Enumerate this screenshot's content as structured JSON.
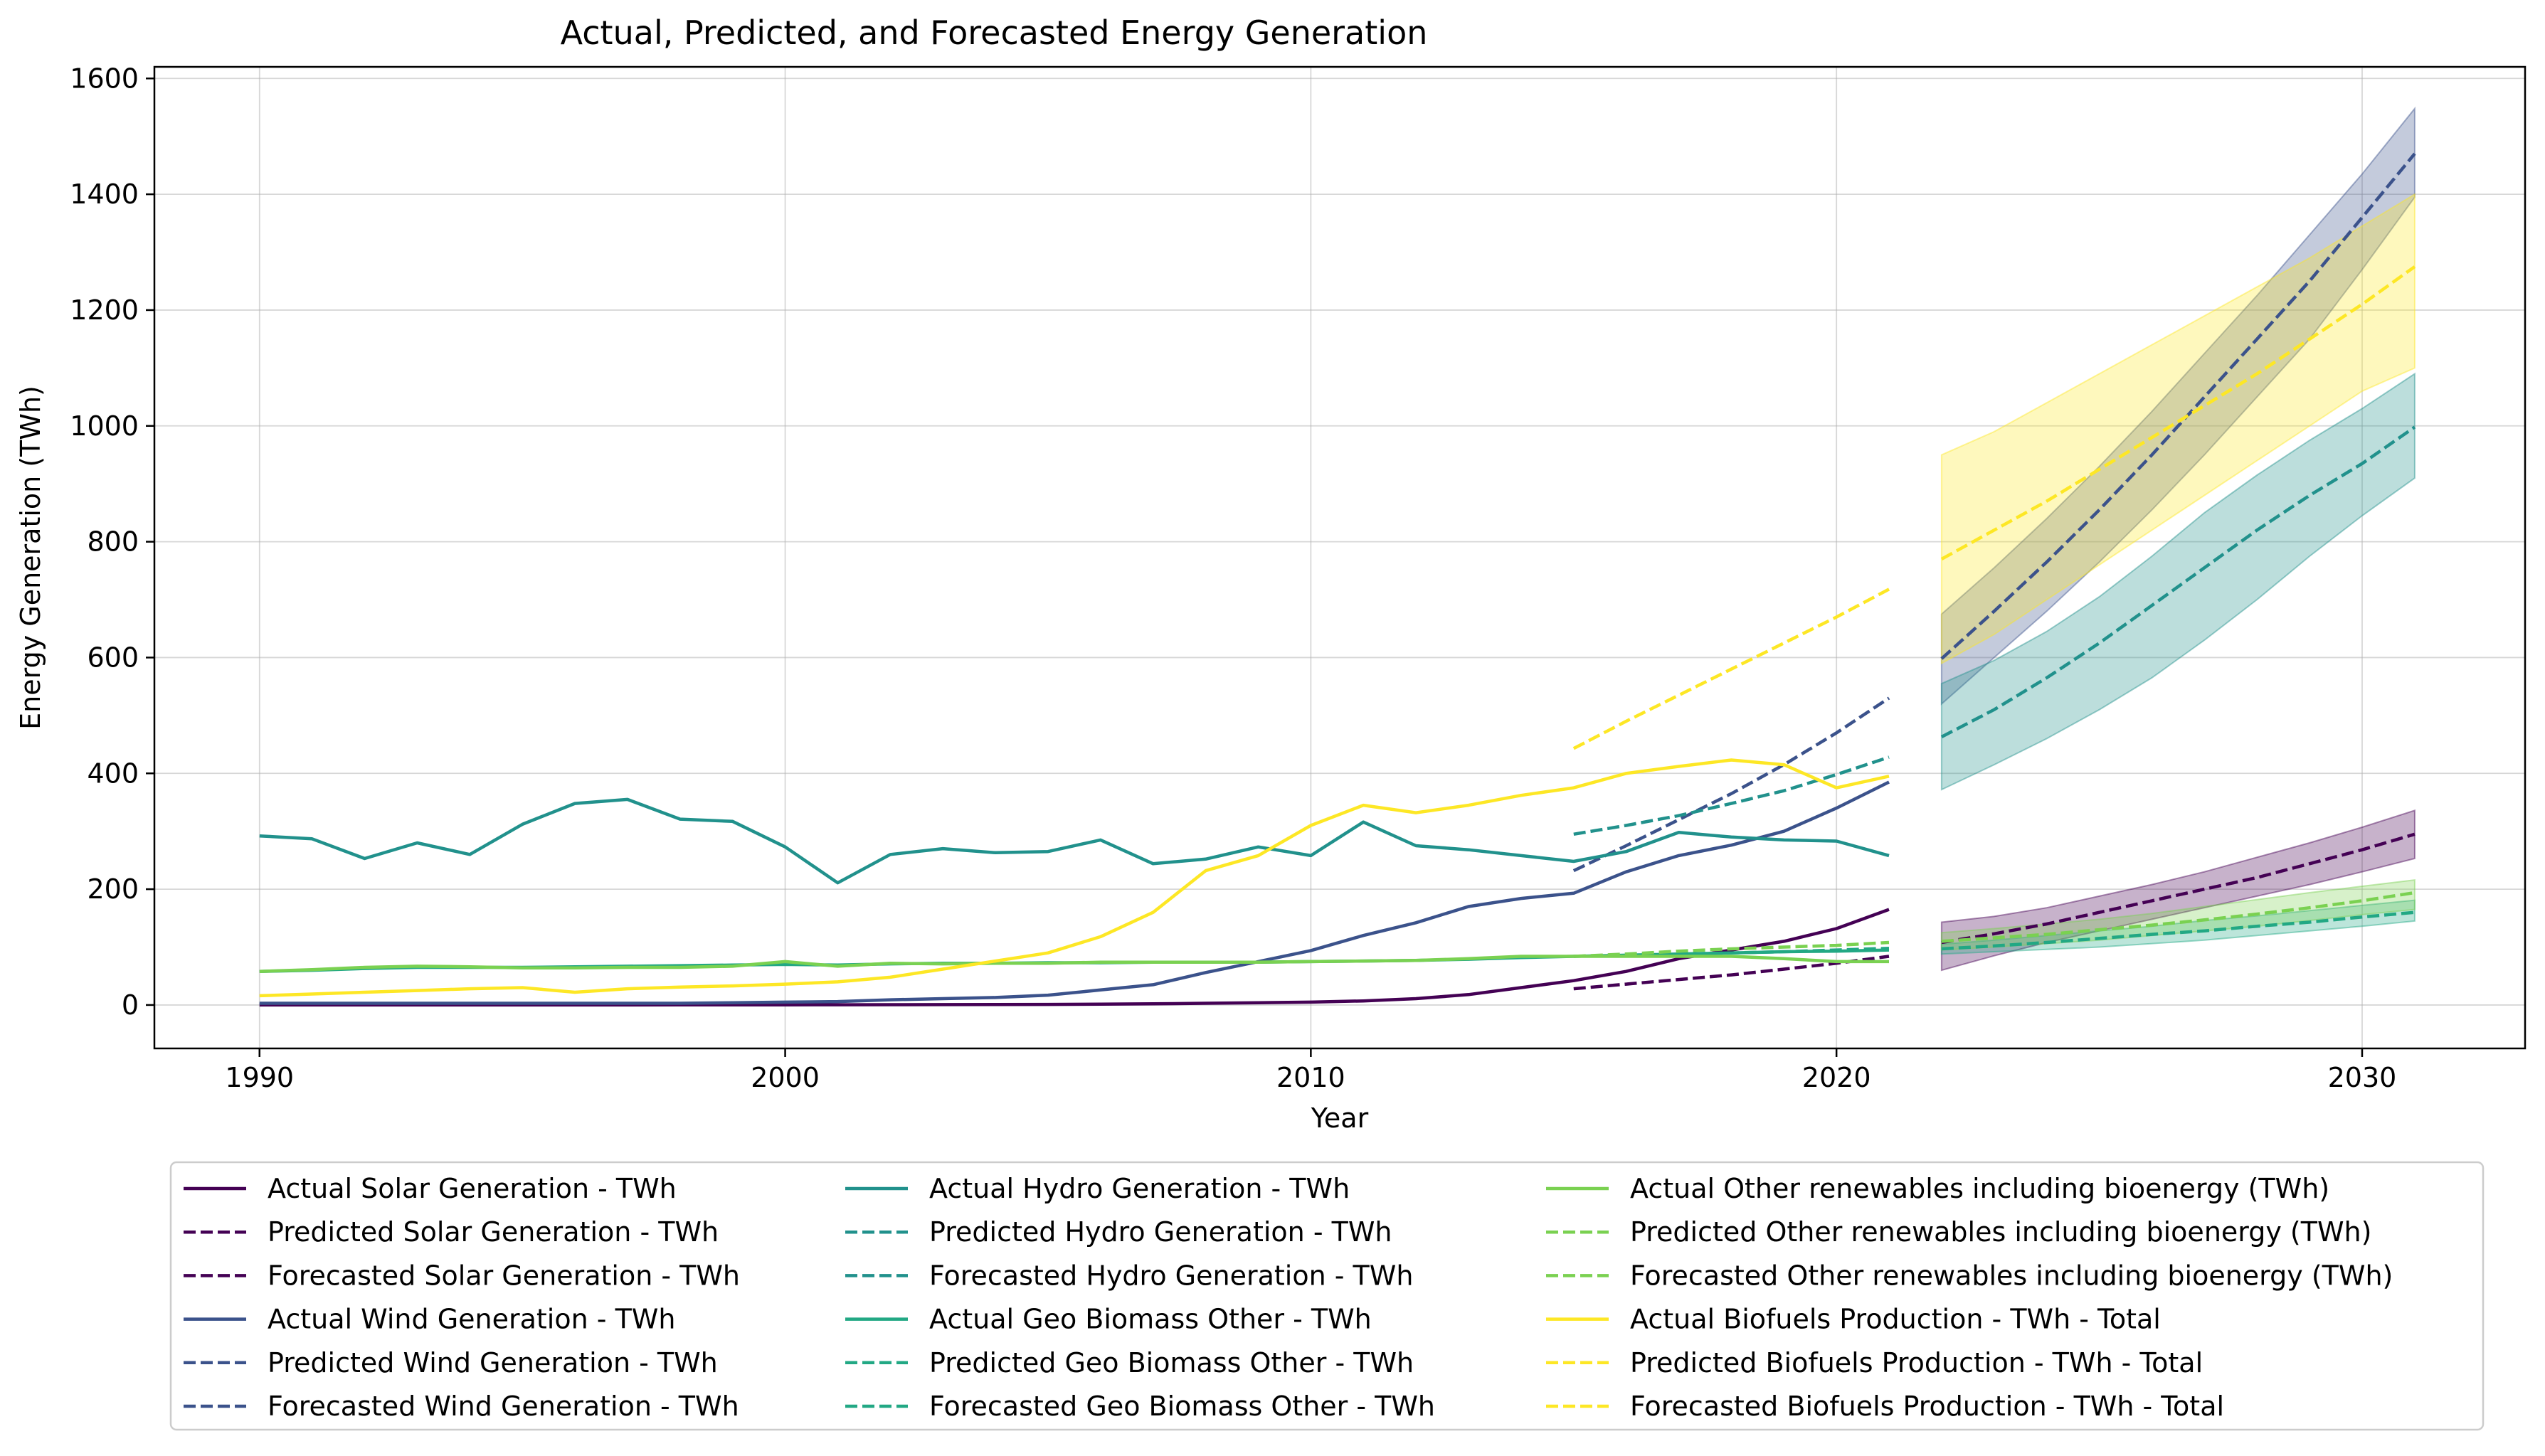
{
  "chart_data": {
    "type": "line",
    "title": "Actual, Predicted, and Forecasted Energy Generation",
    "xlabel": "Year",
    "ylabel": "Energy Generation (TWh)",
    "xlim": [
      1988,
      2033.1
    ],
    "ylim": [
      -75,
      1620
    ],
    "xticks": [
      1990,
      2000,
      2010,
      2020,
      2030
    ],
    "yticks": [
      0,
      200,
      400,
      600,
      800,
      1000,
      1200,
      1400,
      1600
    ],
    "grid": true,
    "legend_position": "below plot, 3 columns",
    "x_actual": [
      1990,
      1991,
      1992,
      1993,
      1994,
      1995,
      1996,
      1997,
      1998,
      1999,
      2000,
      2001,
      2002,
      2003,
      2004,
      2005,
      2006,
      2007,
      2008,
      2009,
      2010,
      2011,
      2012,
      2013,
      2014,
      2015,
      2016,
      2017,
      2018,
      2019,
      2020,
      2021
    ],
    "x_predicted": [
      2015,
      2016,
      2017,
      2018,
      2019,
      2020,
      2021
    ],
    "x_forecast": [
      2022,
      2023,
      2024,
      2025,
      2026,
      2027,
      2028,
      2029,
      2030,
      2031
    ],
    "groups": [
      {
        "color": "#440154",
        "actual_name": "Actual Solar Generation - TWh",
        "predicted_name": "Predicted Solar Generation - TWh",
        "forecast_name": "Forecasted Solar Generation - TWh",
        "actual": [
          0.1,
          0.1,
          0.1,
          0.1,
          0.1,
          0.1,
          0.1,
          0.1,
          0.2,
          0.2,
          0.3,
          0.4,
          0.5,
          0.6,
          0.8,
          1.0,
          1.5,
          2,
          3,
          4,
          5,
          7,
          11,
          18,
          30,
          42,
          58,
          80,
          95,
          110,
          132,
          165
        ],
        "predicted": [
          28,
          36,
          44,
          52,
          62,
          72,
          84
        ],
        "forecast": [
          108,
          123,
          140,
          160,
          180,
          200,
          220,
          244,
          268,
          295
        ],
        "forecast_lower": [
          60,
          85,
          108,
          128,
          148,
          168,
          188,
          208,
          230,
          253
        ],
        "forecast_upper": [
          143,
          153,
          168,
          188,
          208,
          230,
          255,
          280,
          307,
          336
        ]
      },
      {
        "color": "#3b528b",
        "actual_name": "Actual Wind Generation - TWh",
        "predicted_name": "Predicted Wind Generation - TWh",
        "forecast_name": "Forecasted Wind Generation - TWh",
        "actual": [
          3,
          3,
          3,
          3,
          3,
          3,
          3,
          3,
          3,
          4,
          5,
          6,
          9,
          11,
          13,
          17,
          26,
          35,
          56,
          75,
          94,
          120,
          142,
          170,
          184,
          193,
          230,
          258,
          276,
          300,
          340,
          385
        ],
        "predicted": [
          232,
          275,
          320,
          365,
          415,
          470,
          530
        ],
        "forecast": [
          598,
          680,
          765,
          855,
          950,
          1050,
          1150,
          1250,
          1360,
          1470
        ],
        "forecast_lower": [
          520,
          600,
          680,
          765,
          855,
          950,
          1050,
          1150,
          1270,
          1395
        ],
        "forecast_upper": [
          675,
          755,
          840,
          930,
          1025,
          1125,
          1225,
          1330,
          1435,
          1548
        ]
      },
      {
        "color": "#21918c",
        "actual_name": "Actual Hydro Generation - TWh",
        "predicted_name": "Predicted Hydro Generation - TWh",
        "forecast_name": "Forecasted Hydro Generation - TWh",
        "actual": [
          292,
          287,
          253,
          280,
          260,
          312,
          348,
          355,
          321,
          317,
          273,
          211,
          260,
          270,
          263,
          265,
          285,
          244,
          252,
          273,
          258,
          316,
          275,
          268,
          258,
          248,
          265,
          298,
          290,
          285,
          283,
          258
        ],
        "predicted": [
          295,
          310,
          327,
          348,
          370,
          398,
          428
        ],
        "forecast": [
          463,
          510,
          565,
          625,
          690,
          755,
          820,
          880,
          935,
          998
        ],
        "forecast_lower": [
          372,
          415,
          460,
          510,
          565,
          630,
          700,
          775,
          845,
          910
        ],
        "forecast_upper": [
          555,
          595,
          645,
          705,
          775,
          850,
          915,
          975,
          1030,
          1090
        ]
      },
      {
        "color": "#22a884",
        "actual_name": "Actual Geo Biomass Other - TWh",
        "predicted_name": "Predicted Geo Biomass Other - TWh",
        "forecast_name": "Forecasted Geo Biomass Other - TWh",
        "actual": [
          58,
          60,
          63,
          65,
          65,
          65,
          66,
          67,
          68,
          69,
          70,
          69,
          71,
          72,
          72,
          73,
          73,
          74,
          74,
          74,
          75,
          76,
          77,
          79,
          82,
          84,
          86,
          88,
          90,
          92,
          93,
          95
        ],
        "predicted": [
          84,
          86,
          88,
          90,
          92,
          95,
          98
        ],
        "forecast": [
          97,
          102,
          108,
          115,
          122,
          128,
          136,
          143,
          152,
          160
        ],
        "forecast_lower": [
          88,
          92,
          96,
          100,
          106,
          112,
          120,
          128,
          136,
          145
        ],
        "forecast_upper": [
          105,
          112,
          120,
          128,
          136,
          146,
          154,
          163,
          172,
          181
        ]
      },
      {
        "color": "#7ad151",
        "actual_name": "Actual Other renewables including bioenergy (TWh)",
        "predicted_name": "Predicted Other renewables including bioenergy (TWh)",
        "forecast_name": "Forecasted Other renewables including bioenergy (TWh)",
        "actual": [
          58,
          61,
          65,
          67,
          66,
          64,
          64,
          65,
          65,
          67,
          75,
          67,
          72,
          71,
          72,
          72,
          74,
          74,
          74,
          74,
          75,
          76,
          77,
          80,
          84,
          84,
          84,
          84,
          84,
          80,
          75,
          75
        ],
        "predicted": [
          84,
          88,
          93,
          97,
          100,
          103,
          108
        ],
        "forecast": [
          110,
          116,
          122,
          130,
          138,
          147,
          157,
          168,
          180,
          194
        ],
        "forecast_lower": [
          95,
          100,
          106,
          112,
          120,
          128,
          136,
          146,
          156,
          165
        ],
        "forecast_upper": [
          125,
          132,
          140,
          148,
          158,
          170,
          182,
          194,
          205,
          216
        ]
      },
      {
        "color": "#fde725",
        "actual_name": "Actual Biofuels Production - TWh - Total",
        "predicted_name": "Predicted Biofuels Production - TWh - Total",
        "forecast_name": "Forecasted Biofuels Production - TWh - Total",
        "actual": [
          16,
          19,
          22,
          25,
          28,
          30,
          22,
          28,
          31,
          33,
          36,
          40,
          48,
          62,
          76,
          90,
          118,
          160,
          232,
          258,
          310,
          345,
          332,
          345,
          362,
          375,
          400,
          412,
          423,
          415,
          375,
          395
        ],
        "predicted": [
          443,
          490,
          535,
          580,
          625,
          670,
          718
        ],
        "forecast": [
          770,
          820,
          870,
          925,
          980,
          1035,
          1090,
          1150,
          1210,
          1275
        ],
        "forecast_lower": [
          590,
          640,
          700,
          760,
          820,
          880,
          940,
          1000,
          1060,
          1100
        ],
        "forecast_upper": [
          950,
          990,
          1040,
          1090,
          1140,
          1190,
          1240,
          1290,
          1345,
          1400
        ]
      }
    ]
  }
}
